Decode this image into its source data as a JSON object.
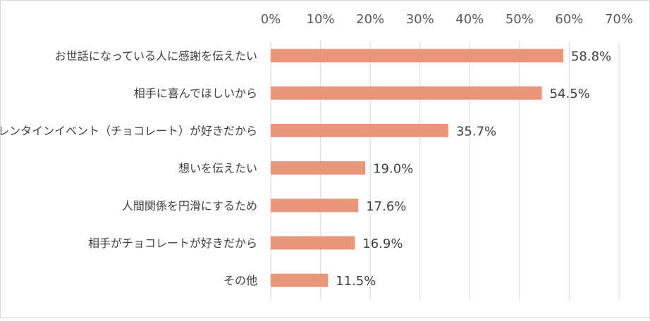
{
  "chart_data": {
    "type": "bar",
    "orientation": "horizontal",
    "categories": [
      "お世話になっている人に感謝を伝えたい",
      "相手に喜んでほしいから",
      "バレンタインイベント（チョコレート）が好きだから",
      "想いを伝えたい",
      "人間関係を円滑にするため",
      "相手がチョコレートが好きだから",
      "その他"
    ],
    "values": [
      58.8,
      54.5,
      35.7,
      19.0,
      17.6,
      16.9,
      11.5
    ],
    "data_labels": [
      "58.8%",
      "54.5%",
      "35.7%",
      "19.0%",
      "17.6%",
      "16.9%",
      "11.5%"
    ],
    "x_ticks": [
      "0%",
      "10%",
      "20%",
      "30%",
      "40%",
      "50%",
      "60%",
      "70%"
    ],
    "xlim": [
      0,
      70
    ],
    "x_axis_position": "top",
    "grid": true,
    "legend": "none",
    "colors": {
      "bar": "#e9967a",
      "grid": "#d9d9d9"
    }
  }
}
